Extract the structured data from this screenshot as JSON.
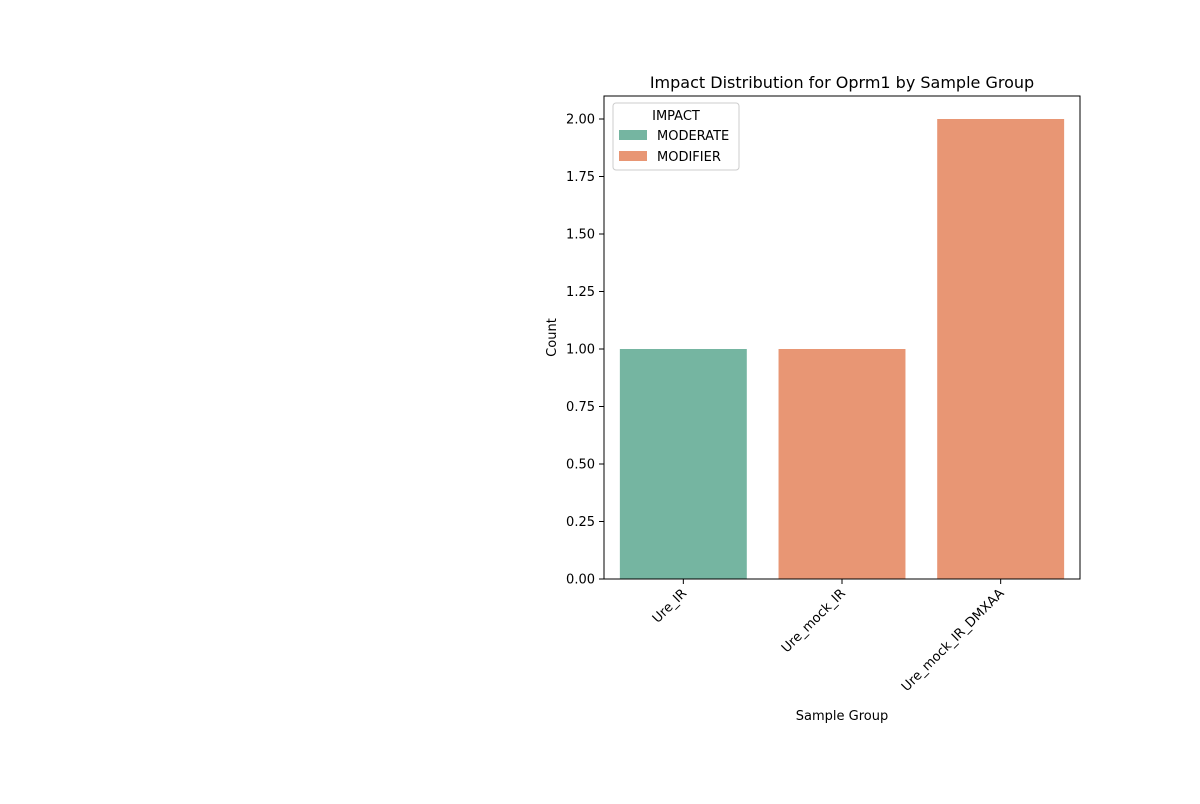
{
  "chart_data": {
    "type": "bar",
    "title": "Impact Distribution for Oprm1 by Sample Group",
    "xlabel": "Sample Group",
    "ylabel": "Count",
    "categories": [
      "Ure_IR",
      "Ure_mock_IR",
      "Ure_mock_IR_DMXAA"
    ],
    "ylim": [
      0,
      2.1
    ],
    "yticks": [
      "0.00",
      "0.25",
      "0.50",
      "0.75",
      "1.00",
      "1.25",
      "1.50",
      "1.75",
      "2.00"
    ],
    "ytick_values": [
      0,
      0.25,
      0.5,
      0.75,
      1.0,
      1.25,
      1.5,
      1.75,
      2.0
    ],
    "legend": {
      "title": "IMPACT",
      "placement": "upper-left",
      "entries": [
        "MODERATE",
        "MODIFIER"
      ]
    },
    "series": [
      {
        "name": "MODERATE",
        "color": "#75b5a1",
        "values": [
          1,
          null,
          null
        ]
      },
      {
        "name": "MODIFIER",
        "color": "#e89674",
        "values": [
          null,
          1,
          2
        ]
      }
    ],
    "grid": false
  }
}
